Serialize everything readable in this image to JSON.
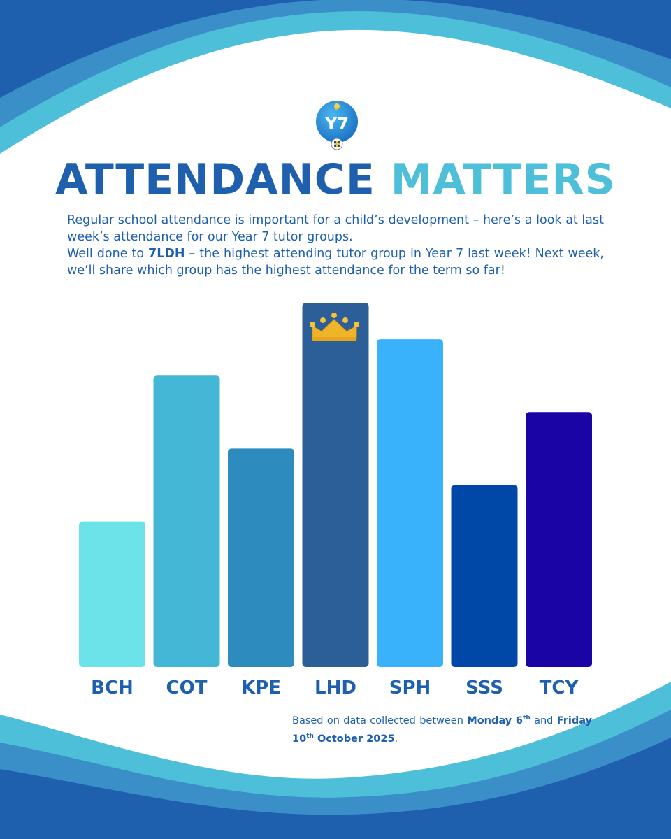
{
  "poster": {
    "badge_text": "Y7",
    "headline": {
      "part1": "ATTENDANCE",
      "part2": "MATTERS"
    },
    "intro": {
      "line1": "Regular school attendance is important for a child’s development – here’s a look at last week’s attendance for our Year 7 tutor groups.",
      "line2_prefix": "Well done to ",
      "line2_group": "7LDH",
      "line2_suffix": " – the highest attending tutor group in Year 7 last week! Next week, we’ll share which group has the highest attendance for the term so far!"
    },
    "footnote": {
      "prefix": "Based on data collected between ",
      "start_day": "Monday 6",
      "start_sup": "th",
      "middle": " and ",
      "end_day": "Friday 10",
      "end_sup": "th",
      "end_rest": " October 2025",
      "suffix": "."
    },
    "colors": {
      "heading_dark": "#1e5fae",
      "heading_light": "#4ebfd8",
      "wave_dark": "#1e5fae",
      "wave_mid": "#3a8fc9",
      "wave_light": "#4ebfd8"
    }
  },
  "chart_data": {
    "type": "bar",
    "categories": [
      "BCH",
      "COT",
      "KPE",
      "LHD",
      "SPH",
      "SSS",
      "TCY"
    ],
    "values": [
      40,
      80,
      60,
      100,
      90,
      50,
      70
    ],
    "ylim": [
      0,
      100
    ],
    "highlight": {
      "category": "LHD",
      "icon": "crown-icon"
    },
    "bar_colors": [
      "#6ce3e9",
      "#44b7d6",
      "#2e8bbd",
      "#2c5f97",
      "#3ab2fb",
      "#0048a8",
      "#1a04a6"
    ],
    "label_color": "#1e5fae",
    "grid": false,
    "axes_visible": false,
    "note": "relative heights only; no values printed"
  }
}
